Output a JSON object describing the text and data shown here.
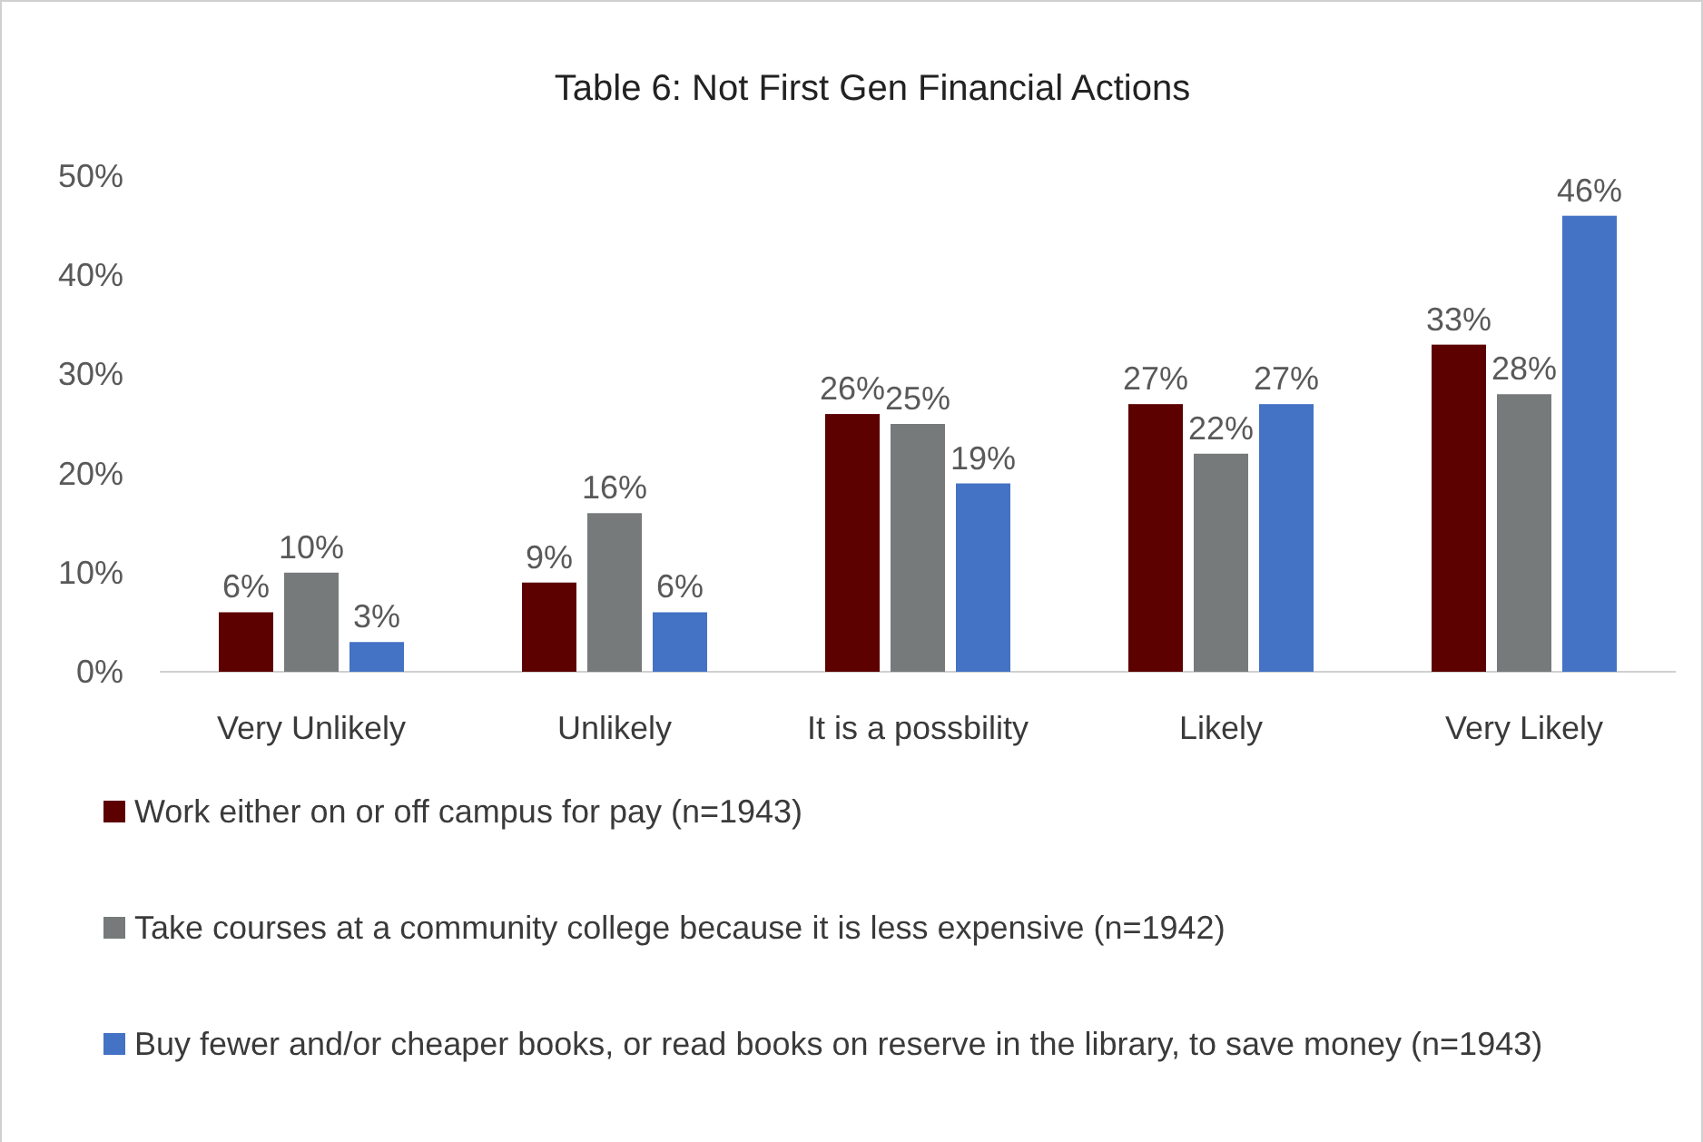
{
  "chart_data": {
    "type": "bar",
    "title": "Table 6: Not First Gen Financial Actions",
    "categories": [
      "Very Unlikely",
      "Unlikely",
      "It is a possbility",
      "Likely",
      "Very Likely"
    ],
    "series": [
      {
        "name": "Work either on or off campus for pay (n=1943)",
        "color": "#5c0000",
        "values": [
          6,
          9,
          26,
          27,
          33
        ],
        "value_labels": [
          "6%",
          "9%",
          "26%",
          "27%",
          "33%"
        ]
      },
      {
        "name": "Take courses at a community college because it is less expensive (n=1942)",
        "color": "#767a7a",
        "values": [
          10,
          16,
          25,
          22,
          28
        ],
        "value_labels": [
          "10%",
          "16%",
          "25%",
          "22%",
          "28%"
        ]
      },
      {
        "name": "Buy fewer and/or cheaper books, or read books on reserve in the library, to save money (n=1943)",
        "color": "#4472c4",
        "values": [
          3,
          6,
          19,
          27,
          46
        ],
        "value_labels": [
          "3%",
          "6%",
          "19%",
          "27%",
          "46%"
        ]
      }
    ],
    "ylim": [
      0,
      50
    ],
    "yticks": [
      {
        "value": 0,
        "label": "0%"
      },
      {
        "value": 10,
        "label": "10%"
      },
      {
        "value": 20,
        "label": "20%"
      },
      {
        "value": 30,
        "label": "30%"
      },
      {
        "value": 40,
        "label": "40%"
      },
      {
        "value": 50,
        "label": "50%"
      }
    ],
    "grid": false,
    "legend": "bottom"
  }
}
